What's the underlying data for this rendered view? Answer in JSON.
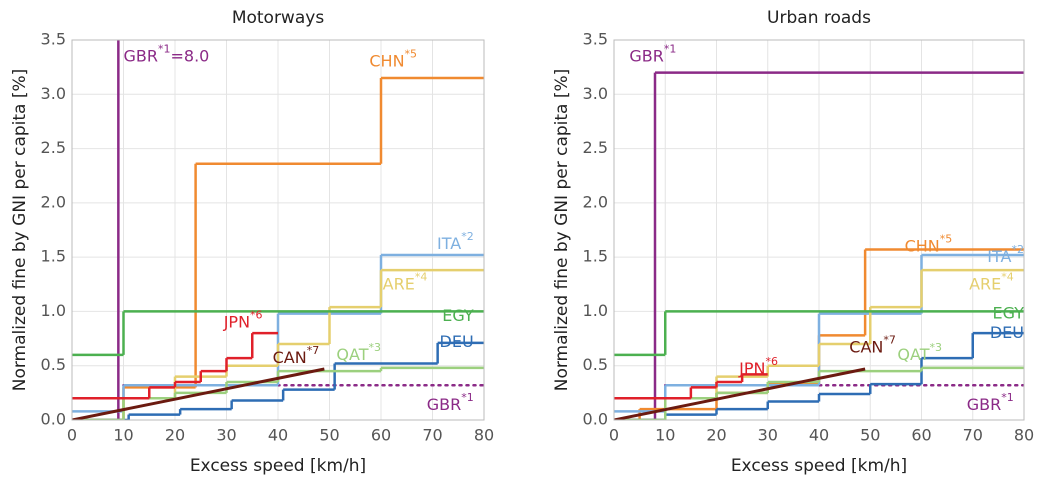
{
  "chart_data": [
    {
      "type": "step",
      "title": "Motorways",
      "xlabel": "Excess speed [km/h]",
      "ylabel": "Normalized fine by GNI per capita [%]",
      "xlim": [
        0,
        80
      ],
      "ylim": [
        0,
        3.5
      ],
      "xticks": [
        0,
        10,
        20,
        30,
        40,
        50,
        60,
        70,
        80
      ],
      "yticks": [
        {
          "value": 0,
          "label": "0.0"
        },
        0.5,
        {
          "value": 1,
          "label": "1.0"
        },
        1.5,
        {
          "value": 2,
          "label": "2.0"
        },
        2.5,
        {
          "value": 3,
          "label": "3.0"
        },
        3.5
      ],
      "grid": true,
      "series": [
        {
          "name": "GBR",
          "note": "*1",
          "color": "#8b2a87",
          "x": [
            9,
            9
          ],
          "values": [
            0,
            8.0
          ],
          "value_labels": [
            null,
            "=8.0"
          ]
        },
        {
          "name": "GBR",
          "note": "*1",
          "color": "#8b2a87",
          "linestyle": "dotted",
          "x": [
            10,
            80
          ],
          "values": [
            0.32,
            0.32
          ]
        },
        {
          "name": "CHN",
          "note": "*5",
          "color": "#f08a30",
          "x": [
            0,
            10,
            24,
            60,
            80
          ],
          "values": [
            0,
            0.3,
            2.36,
            3.15,
            3.15
          ]
        },
        {
          "name": "ITA",
          "note": "*2",
          "color": "#7eb0e0",
          "x": [
            0,
            10,
            40,
            60,
            80
          ],
          "values": [
            0.08,
            0.32,
            0.98,
            1.52,
            1.52
          ]
        },
        {
          "name": "ARE",
          "note": "*4",
          "color": "#e5cf6e",
          "x": [
            0,
            10,
            20,
            30,
            40,
            50,
            60,
            80
          ],
          "values": [
            0,
            0.2,
            0.4,
            0.5,
            0.7,
            1.04,
            1.38,
            1.38
          ]
        },
        {
          "name": "EGY",
          "color": "#4cb050",
          "x": [
            0,
            10,
            80
          ],
          "values": [
            0.6,
            1.0,
            1.0
          ]
        },
        {
          "name": "DEU",
          "color": "#2e6db4",
          "x": [
            0,
            11,
            21,
            31,
            41,
            51,
            71,
            80
          ],
          "values": [
            0,
            0.05,
            0.1,
            0.18,
            0.28,
            0.52,
            0.71,
            0.71
          ]
        },
        {
          "name": "QAT",
          "note": "*3",
          "color": "#9cd07e",
          "x": [
            0,
            10,
            20,
            30,
            40,
            60,
            80
          ],
          "values": [
            0,
            0.2,
            0.25,
            0.35,
            0.45,
            0.48,
            0.48
          ]
        },
        {
          "name": "JPN",
          "note": "*6",
          "color": "#e0202a",
          "x": [
            0,
            15,
            20,
            25,
            30,
            35,
            40
          ],
          "values": [
            0.2,
            0.3,
            0.35,
            0.45,
            0.57,
            0.8,
            0.8
          ]
        },
        {
          "name": "CAN",
          "note": "*7",
          "color": "#6b1a10",
          "drawstyle": "linear",
          "x": [
            0,
            49
          ],
          "values": [
            0,
            0.47
          ]
        }
      ]
    },
    {
      "type": "step",
      "title": "Urban roads",
      "xlabel": "Excess speed [km/h]",
      "ylabel": "Normalized fine by GNI per capita [%]",
      "xlim": [
        0,
        80
      ],
      "ylim": [
        0,
        3.5
      ],
      "xticks": [
        0,
        10,
        20,
        30,
        40,
        50,
        60,
        70,
        80
      ],
      "yticks": [
        {
          "value": 0,
          "label": "0.0"
        },
        0.5,
        {
          "value": 1,
          "label": "1.0"
        },
        1.5,
        {
          "value": 2,
          "label": "2.0"
        },
        2.5,
        {
          "value": 3,
          "label": "3.0"
        },
        3.5
      ],
      "grid": true,
      "series": [
        {
          "name": "GBR",
          "note": "*1",
          "color": "#8b2a87",
          "x": [
            0,
            8,
            80
          ],
          "values": [
            0,
            3.2,
            3.2
          ]
        },
        {
          "name": "GBR",
          "note": "*1",
          "color": "#8b2a87",
          "linestyle": "dotted",
          "x": [
            10,
            80
          ],
          "values": [
            0.32,
            0.32
          ]
        },
        {
          "name": "CHN",
          "note": "*5",
          "color": "#f08a30",
          "x": [
            0,
            5,
            20,
            30,
            40,
            49,
            80
          ],
          "values": [
            0,
            0.1,
            0.25,
            0.33,
            0.78,
            1.57,
            1.57
          ]
        },
        {
          "name": "ITA",
          "note": "*2",
          "color": "#7eb0e0",
          "x": [
            0,
            10,
            40,
            60,
            80
          ],
          "values": [
            0.08,
            0.32,
            0.98,
            1.52,
            1.52
          ]
        },
        {
          "name": "ARE",
          "note": "*4",
          "color": "#e5cf6e",
          "x": [
            0,
            10,
            20,
            30,
            40,
            50,
            60,
            80
          ],
          "values": [
            0,
            0.2,
            0.4,
            0.5,
            0.7,
            1.04,
            1.38,
            1.38
          ]
        },
        {
          "name": "EGY",
          "color": "#4cb050",
          "x": [
            0,
            10,
            80
          ],
          "values": [
            0.6,
            1.0,
            1.0
          ]
        },
        {
          "name": "DEU",
          "color": "#2e6db4",
          "x": [
            0,
            10,
            20,
            30,
            40,
            50,
            60,
            70,
            80
          ],
          "values": [
            0,
            0.05,
            0.1,
            0.17,
            0.24,
            0.33,
            0.57,
            0.8,
            0.8
          ]
        },
        {
          "name": "QAT",
          "note": "*3",
          "color": "#9cd07e",
          "x": [
            0,
            10,
            20,
            30,
            40,
            60,
            80
          ],
          "values": [
            0,
            0.2,
            0.25,
            0.35,
            0.45,
            0.48,
            0.48
          ]
        },
        {
          "name": "JPN",
          "note": "*6",
          "color": "#e0202a",
          "x": [
            0,
            15,
            20,
            25,
            30
          ],
          "values": [
            0.2,
            0.3,
            0.35,
            0.42,
            0.42
          ]
        },
        {
          "name": "CAN",
          "note": "*7",
          "color": "#6b1a10",
          "drawstyle": "linear",
          "x": [
            0,
            49
          ],
          "values": [
            0,
            0.47
          ]
        }
      ]
    }
  ]
}
